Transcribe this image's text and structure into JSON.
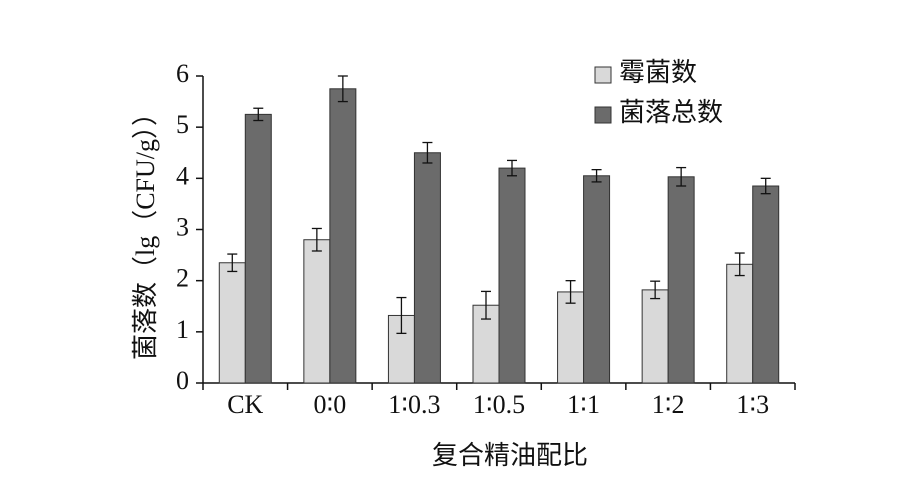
{
  "chart_data": {
    "type": "bar",
    "x_label": "复合精油配比",
    "y_label": "菌落数（lg（CFU/g））",
    "categories": [
      "CK",
      "0∶0",
      "1∶0.3",
      "1∶0.5",
      "1∶1",
      "1∶2",
      "1∶3"
    ],
    "series": [
      {
        "name": "霉菌数",
        "color": "#d9d9d9",
        "values": [
          2.35,
          2.8,
          1.32,
          1.52,
          1.78,
          1.82,
          2.32
        ],
        "errors": [
          0.17,
          0.22,
          0.35,
          0.27,
          0.22,
          0.17,
          0.22
        ]
      },
      {
        "name": "菌落总数",
        "color": "#6b6b6b",
        "values": [
          5.25,
          5.75,
          4.5,
          4.2,
          4.05,
          4.03,
          3.85
        ],
        "errors": [
          0.12,
          0.25,
          0.2,
          0.15,
          0.12,
          0.18,
          0.15
        ]
      }
    ],
    "ylim": [
      0,
      6
    ],
    "yticks": [
      0,
      1,
      2,
      3,
      4,
      5,
      6
    ],
    "grid": false,
    "legend": "upper right"
  }
}
